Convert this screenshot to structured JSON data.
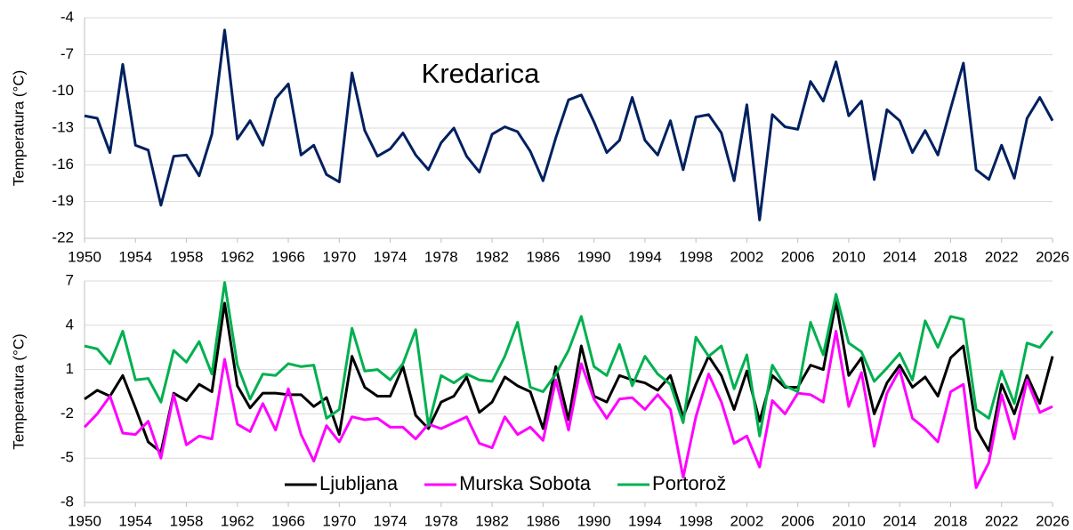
{
  "chart_data": [
    {
      "type": "line",
      "annotation": "Kredarica",
      "ylabel": "Temperatura (°C)",
      "x": [
        1950,
        1951,
        1952,
        1953,
        1954,
        1955,
        1956,
        1957,
        1958,
        1959,
        1960,
        1961,
        1962,
        1963,
        1964,
        1965,
        1966,
        1967,
        1968,
        1969,
        1970,
        1971,
        1972,
        1973,
        1974,
        1975,
        1976,
        1977,
        1978,
        1979,
        1980,
        1981,
        1982,
        1983,
        1984,
        1985,
        1986,
        1987,
        1988,
        1989,
        1990,
        1991,
        1992,
        1993,
        1994,
        1995,
        1996,
        1997,
        1998,
        1999,
        2000,
        2001,
        2002,
        2003,
        2004,
        2005,
        2006,
        2007,
        2008,
        2009,
        2010,
        2011,
        2012,
        2013,
        2014,
        2015,
        2016,
        2017,
        2018,
        2019,
        2020,
        2021,
        2022,
        2023,
        2024,
        2025,
        2026
      ],
      "series": [
        {
          "color": "#002060",
          "values": [
            -12.0,
            -12.2,
            -15.0,
            -7.8,
            -14.4,
            -14.8,
            -19.3,
            -15.3,
            -15.2,
            -16.9,
            -13.5,
            -5.0,
            -13.9,
            -12.4,
            -14.4,
            -10.6,
            -9.4,
            -15.2,
            -14.4,
            -16.8,
            -17.4,
            -8.5,
            -13.2,
            -15.3,
            -14.7,
            -13.4,
            -15.2,
            -16.4,
            -14.2,
            -13.0,
            -15.3,
            -16.6,
            -13.5,
            -12.9,
            -13.3,
            -14.9,
            -17.3,
            -13.8,
            -10.7,
            -10.3,
            -12.5,
            -15.0,
            -14.0,
            -10.5,
            -14.0,
            -15.2,
            -12.4,
            -16.4,
            -12.1,
            -11.9,
            -13.4,
            -17.3,
            -11.1,
            -20.5,
            -11.9,
            -12.9,
            -13.1,
            -9.2,
            -10.8,
            -7.6,
            -12.0,
            -10.8,
            -17.2,
            -11.5,
            -12.4,
            -15.0,
            -13.2,
            -15.2,
            -11.4,
            -7.7,
            -16.4,
            -17.2,
            -14.4,
            -17.1,
            -12.2,
            -10.5,
            -12.4
          ]
        }
      ],
      "xlim": [
        1950,
        2026
      ],
      "xticks": [
        1950,
        1954,
        1958,
        1962,
        1966,
        1970,
        1974,
        1978,
        1982,
        1986,
        1990,
        1994,
        1998,
        2002,
        2006,
        2010,
        2014,
        2018,
        2022,
        2026
      ],
      "ylim": [
        -22,
        -4
      ],
      "yticks": [
        -22,
        -19,
        -16,
        -13,
        -10,
        -7,
        -4
      ],
      "grid": true
    },
    {
      "type": "line",
      "ylabel": "Temperatura (°C)",
      "legend": "bottom",
      "x": [
        1950,
        1951,
        1952,
        1953,
        1954,
        1955,
        1956,
        1957,
        1958,
        1959,
        1960,
        1961,
        1962,
        1963,
        1964,
        1965,
        1966,
        1967,
        1968,
        1969,
        1970,
        1971,
        1972,
        1973,
        1974,
        1975,
        1976,
        1977,
        1978,
        1979,
        1980,
        1981,
        1982,
        1983,
        1984,
        1985,
        1986,
        1987,
        1988,
        1989,
        1990,
        1991,
        1992,
        1993,
        1994,
        1995,
        1996,
        1997,
        1998,
        1999,
        2000,
        2001,
        2002,
        2003,
        2004,
        2005,
        2006,
        2007,
        2008,
        2009,
        2010,
        2011,
        2012,
        2013,
        2014,
        2015,
        2016,
        2017,
        2018,
        2019,
        2020,
        2021,
        2022,
        2023,
        2024,
        2025,
        2026
      ],
      "series": [
        {
          "name": "Ljubljana",
          "color": "#000000",
          "values": [
            -1.0,
            -0.4,
            -0.8,
            0.6,
            -1.6,
            -3.9,
            -4.6,
            -0.6,
            -1.1,
            0.0,
            -0.5,
            5.5,
            -0.1,
            -1.6,
            -0.6,
            -0.6,
            -0.7,
            -0.7,
            -1.5,
            -0.9,
            -3.4,
            1.9,
            -0.2,
            -0.8,
            -0.8,
            1.2,
            -2.1,
            -3.0,
            -1.2,
            -0.8,
            0.5,
            -1.9,
            -1.2,
            0.5,
            -0.1,
            -0.5,
            -3.0,
            1.2,
            -2.4,
            2.6,
            -0.8,
            -1.2,
            0.6,
            0.3,
            0.1,
            -0.4,
            0.6,
            -2.2,
            0.0,
            1.9,
            0.6,
            -1.7,
            0.9,
            -2.5,
            0.6,
            -0.2,
            -0.2,
            1.3,
            1.0,
            5.6,
            0.6,
            1.8,
            -2.0,
            0.1,
            1.3,
            -0.2,
            0.5,
            -0.8,
            1.8,
            2.6,
            -3.0,
            -4.5,
            0.0,
            -2.0,
            0.6,
            -1.3,
            1.9
          ]
        },
        {
          "name": "Murska Sobota",
          "color": "#ff00ff",
          "values": [
            -2.9,
            -2.0,
            -0.8,
            -3.3,
            -3.4,
            -2.5,
            -5.0,
            -0.7,
            -4.1,
            -3.5,
            -3.7,
            1.7,
            -2.7,
            -3.2,
            -1.3,
            -3.1,
            -0.3,
            -3.4,
            -5.2,
            -2.8,
            -3.9,
            -2.2,
            -2.4,
            -2.3,
            -2.9,
            -2.9,
            -3.7,
            -2.7,
            -3.0,
            -2.6,
            -2.2,
            -4.0,
            -4.3,
            -2.2,
            -3.4,
            -2.9,
            -3.8,
            0.3,
            -3.1,
            1.4,
            -1.0,
            -2.3,
            -1.0,
            -0.9,
            -1.7,
            -0.7,
            -1.7,
            -6.3,
            -2.2,
            0.7,
            -1.2,
            -4.0,
            -3.5,
            -5.6,
            -1.1,
            -2.0,
            -0.6,
            -0.7,
            -1.2,
            3.6,
            -1.5,
            0.8,
            -4.2,
            -0.6,
            1.0,
            -2.3,
            -3.0,
            -3.9,
            -0.5,
            0.0,
            -7.0,
            -5.3,
            -0.7,
            -3.7,
            0.3,
            -1.9,
            -1.5
          ]
        },
        {
          "name": "Portorož",
          "color": "#00b050",
          "values": [
            2.6,
            2.4,
            1.4,
            3.6,
            0.3,
            0.4,
            -1.2,
            2.3,
            1.5,
            2.9,
            0.7,
            6.9,
            1.3,
            -1.0,
            0.7,
            0.6,
            1.4,
            1.2,
            1.3,
            -2.3,
            -1.7,
            3.8,
            0.9,
            1.0,
            0.3,
            1.4,
            3.7,
            -2.8,
            0.6,
            0.1,
            0.7,
            0.3,
            0.2,
            1.9,
            4.2,
            -0.2,
            -0.5,
            0.7,
            2.3,
            4.6,
            1.2,
            0.6,
            2.7,
            -0.1,
            1.9,
            0.7,
            0.0,
            -2.6,
            3.2,
            1.9,
            2.6,
            -0.3,
            2.0,
            -3.5,
            1.3,
            -0.1,
            -0.5,
            4.2,
            2.0,
            6.1,
            2.8,
            2.2,
            0.2,
            1.1,
            2.1,
            0.3,
            4.3,
            2.5,
            4.6,
            4.4,
            -1.7,
            -2.3,
            0.9,
            -1.3,
            2.8,
            2.5,
            3.6
          ]
        }
      ],
      "xlim": [
        1950,
        2026
      ],
      "xticks": [
        1950,
        1954,
        1958,
        1962,
        1966,
        1970,
        1974,
        1978,
        1982,
        1986,
        1990,
        1994,
        1998,
        2002,
        2006,
        2010,
        2014,
        2018,
        2022,
        2026
      ],
      "ylim": [
        -8,
        7
      ],
      "yticks": [
        -8,
        -5,
        -2,
        1,
        4,
        7
      ],
      "grid": true
    }
  ]
}
